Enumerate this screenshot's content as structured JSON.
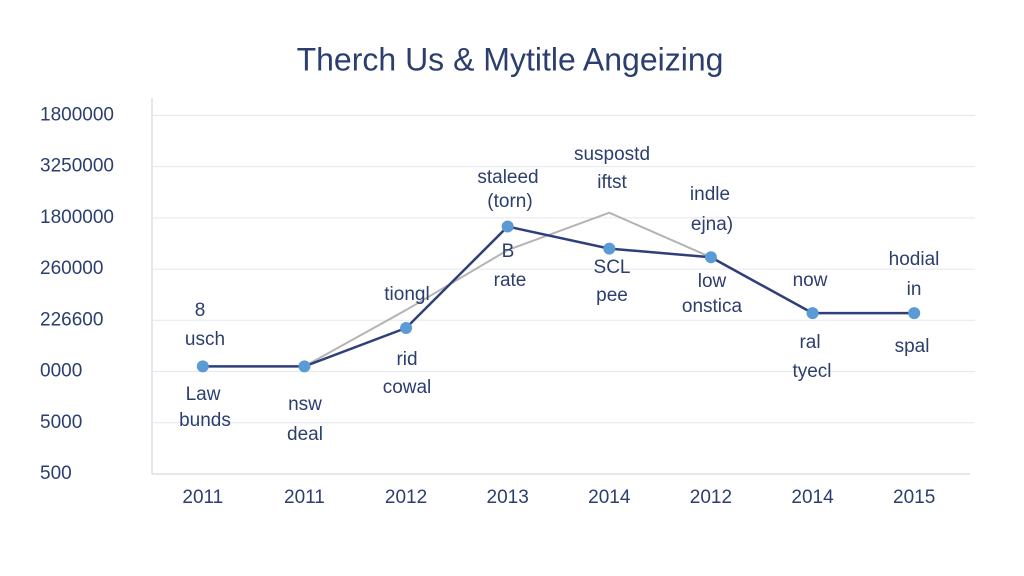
{
  "chart_data": {
    "type": "line",
    "title": "Therch Us & Mytitle Angeizing",
    "categories": [
      "2011",
      "2011",
      "2012",
      "2013",
      "2014",
      "2012",
      "2014",
      "2015"
    ],
    "series": [
      {
        "color": "#2e3f7a",
        "marker_color": "#5b9bd5",
        "values": [
          2.1,
          2.1,
          2.85,
          4.83,
          4.4,
          4.23,
          3.14,
          3.14
        ]
      },
      {
        "color": "#b4b4b4",
        "values": [
          null,
          2.1,
          3.2,
          4.37,
          5.1,
          4.23,
          null,
          null
        ]
      }
    ],
    "ylim": [
      0,
      7.3
    ],
    "yticks": [
      {
        "value": 0,
        "label": "500"
      },
      {
        "value": 1,
        "label": "5000"
      },
      {
        "value": 2,
        "label": "0000"
      },
      {
        "value": 3,
        "label": "226600"
      },
      {
        "value": 4,
        "label": "260000"
      },
      {
        "value": 5,
        "label": "1800000"
      },
      {
        "value": 6,
        "label": "3250000"
      },
      {
        "value": 7,
        "label": "1800000"
      }
    ],
    "grid": true,
    "annotations": [
      "8",
      "usch",
      "Law",
      "bunds",
      "nsw",
      "deal",
      "tiongl",
      "rid",
      "cowal",
      "staleed",
      "(torn)",
      "B",
      "rate",
      "suspostd",
      "iftst",
      "SCL",
      "pee",
      "indle",
      "ejna)",
      "low",
      "onstica",
      "now",
      "ral",
      "tyecl",
      "hodial",
      "in",
      "spal"
    ]
  }
}
